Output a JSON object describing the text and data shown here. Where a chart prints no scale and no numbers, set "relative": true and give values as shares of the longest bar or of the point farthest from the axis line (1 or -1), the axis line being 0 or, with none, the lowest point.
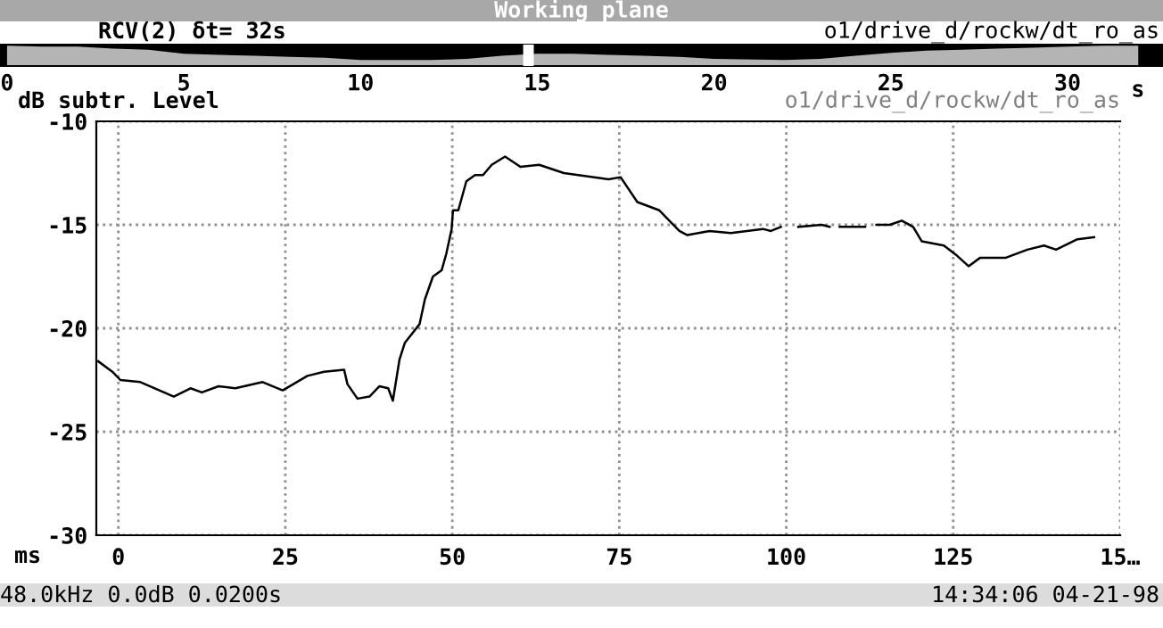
{
  "chart_data": [
    {
      "type": "area",
      "relative": true,
      "title": "Working plane",
      "subtitle": "RCV(2) δt= 32s",
      "annotations": [
        "o1/drive_d/rockw/dt_ro_as"
      ],
      "xlabel": "s",
      "tick_labels": "x",
      "x": [
        0,
        1,
        2,
        3,
        4,
        5,
        6,
        7,
        8,
        9,
        10,
        12,
        13,
        14,
        15,
        16,
        17,
        18,
        19,
        20,
        22,
        23,
        24,
        25,
        26,
        27,
        28,
        29,
        30,
        31,
        32
      ],
      "series": [
        {
          "color": "#b4b4b4",
          "values": [
            1,
            0.95,
            0.95,
            0.85,
            0.8,
            0.6,
            0.55,
            0.5,
            0.45,
            0.4,
            0.3,
            0.3,
            0.35,
            0.5,
            0.6,
            0.6,
            0.55,
            0.5,
            0.45,
            0.35,
            0.3,
            0.35,
            0.5,
            0.65,
            0.75,
            0.8,
            0.85,
            0.9,
            0.95,
            1,
            1
          ]
        }
      ],
      "xlim": [
        -0.2,
        32.7
      ],
      "xticks": [
        0,
        5,
        10,
        15,
        20,
        25,
        30
      ],
      "bands": [
        {
          "axis": "x",
          "from": 14.6,
          "to": 14.9,
          "color": "#ffffff"
        }
      ]
    },
    {
      "type": "line",
      "ylabel": "dB subtr. Level",
      "xlabel": "ms",
      "annotations": [
        "o1/drive_d/rockw/dt_ro_as",
        "48.0kHz 0.0dB 0.0200s",
        "14:34:06 04-21-98"
      ],
      "x": [
        -3,
        -0.9,
        0.3,
        3.3,
        8.3,
        10.8,
        12.5,
        15,
        17.5,
        21.6,
        24.6,
        28.3,
        30.8,
        33.8,
        34.3,
        35.8,
        37.6,
        39.1,
        40.4,
        41.1,
        42.1,
        42.9,
        45.1,
        45.9,
        47.1,
        48.4,
        49.1,
        49.9,
        50.1,
        50.9,
        52.1,
        53.4,
        54.6,
        55.9,
        57.9,
        60.2,
        63,
        66.7,
        73.4,
        75.2,
        77.7,
        81,
        84,
        85.2,
        88.5,
        91.7,
        96.5,
        97.7,
        99.2,
        100.5,
        101.8,
        105.3,
        106.5,
        107.3,
        108,
        111.8,
        112.6,
        113.5,
        115.5,
        117.3,
        119,
        120.3,
        123.6,
        125.6,
        127.3,
        129,
        132.8,
        136.1,
        138.6,
        140.4,
        143.6,
        146.1
      ],
      "series": [
        {
          "color": "#000000",
          "values": [
            -21.6,
            -22.1,
            -22.5,
            -22.6,
            -23.3,
            -22.9,
            -23.1,
            -22.8,
            -22.9,
            -22.6,
            -23.0,
            -22.3,
            -22.1,
            -22.0,
            -22.7,
            -23.4,
            -23.3,
            -22.8,
            -22.9,
            -23.5,
            -21.5,
            -20.7,
            -19.8,
            -18.6,
            -17.5,
            -17.2,
            -16.4,
            -15.2,
            -14.3,
            -14.3,
            -12.9,
            -12.6,
            -12.6,
            -12.1,
            -11.7,
            -12.2,
            -12.1,
            -12.5,
            -12.8,
            -12.7,
            -13.9,
            -14.3,
            -15.3,
            -15.5,
            -15.3,
            -15.4,
            -15.2,
            -15.3,
            -15.1,
            null,
            -15.1,
            -15.0,
            -15.1,
            null,
            -15.1,
            -15.1,
            null,
            -15.0,
            -15.0,
            -14.8,
            -15.1,
            -15.8,
            -16.0,
            -16.5,
            -17.0,
            -16.6,
            -16.6,
            -16.2,
            -16.0,
            -16.2,
            -15.7,
            -15.6
          ]
        }
      ],
      "xlim": [
        -3.3,
        150
      ],
      "ylim": [
        -30,
        -10
      ],
      "xticks": [
        0,
        25,
        50,
        75,
        100,
        125,
        {
          "value": 150,
          "label": "15…"
        }
      ],
      "yticks": [
        -10,
        -15,
        -20,
        -25,
        -30
      ],
      "grid": true
    }
  ]
}
